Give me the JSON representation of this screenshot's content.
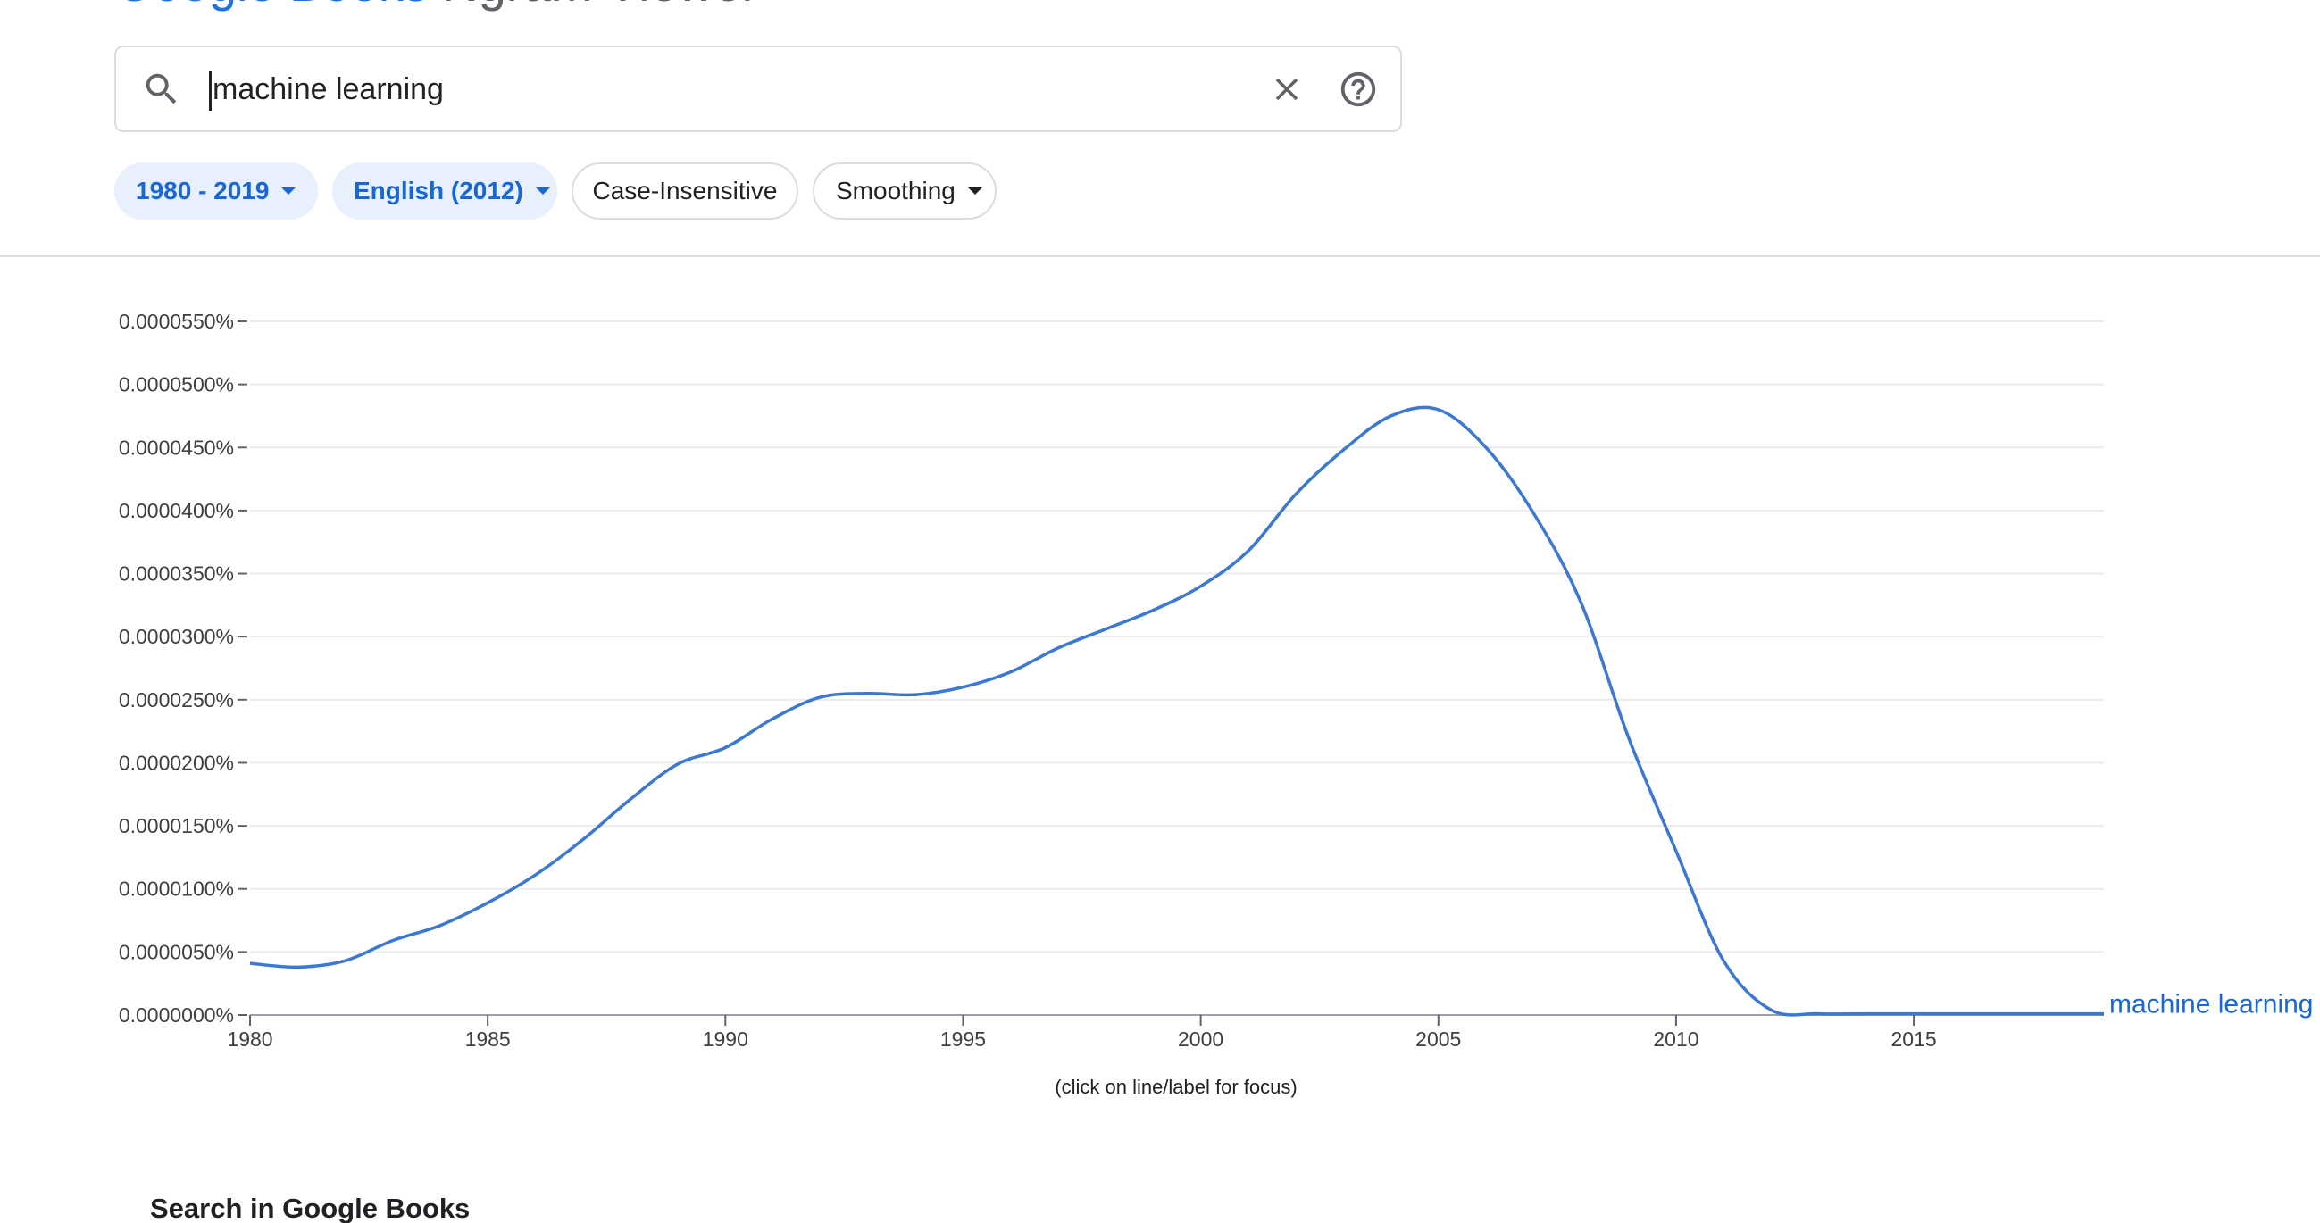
{
  "header": {
    "title_parts": [
      "Google Books ",
      "Ngram Viewer"
    ]
  },
  "search": {
    "value": "machine learning",
    "placeholder": "",
    "icons": [
      "search-icon",
      "clear-icon",
      "help-icon"
    ]
  },
  "filters": {
    "year_range": "1980 - 2019",
    "corpus": "English (2012)",
    "case": "Case-Insensitive",
    "smoothing": "Smoothing"
  },
  "chart_data": {
    "type": "line",
    "title": "",
    "xlabel": "",
    "ylabel": "",
    "xlim": [
      1980,
      2019
    ],
    "ylim": [
      0,
      5.5e-05
    ],
    "x_ticks": [
      1980,
      1985,
      1990,
      1995,
      2000,
      2005,
      2010,
      2015
    ],
    "y_ticks": [
      "0.0000000%",
      "0.0000050%",
      "0.0000100%",
      "0.0000150%",
      "0.0000200%",
      "0.0000250%",
      "0.0000300%",
      "0.0000350%",
      "0.0000400%",
      "0.0000450%",
      "0.0000500%",
      "0.0000550%"
    ],
    "y_tick_values": [
      0,
      5e-06,
      1e-05,
      1.5e-05,
      2e-05,
      2.5e-05,
      3e-05,
      3.5e-05,
      4e-05,
      4.5e-05,
      5e-05,
      5.5e-05
    ],
    "grid": true,
    "legend": "end-of-line label",
    "series": [
      {
        "name": "machine learning",
        "color": "#3b78d4",
        "x": [
          1980,
          1981,
          1982,
          1983,
          1984,
          1985,
          1986,
          1987,
          1988,
          1989,
          1990,
          1991,
          1992,
          1993,
          1994,
          1995,
          1996,
          1997,
          1998,
          1999,
          2000,
          2001,
          2002,
          2003,
          2004,
          2005,
          2006,
          2007,
          2008,
          2009,
          2010,
          2011,
          2012,
          2013,
          2014,
          2015,
          2016,
          2017,
          2018,
          2019
        ],
        "values": [
          4.1e-06,
          3.8e-06,
          4.3e-06,
          5.9e-06,
          7.1e-06,
          8.9e-06,
          1.11e-05,
          1.39e-05,
          1.71e-05,
          1.99e-05,
          2.12e-05,
          2.35e-05,
          2.52e-05,
          2.55e-05,
          2.54e-05,
          2.6e-05,
          2.72e-05,
          2.91e-05,
          3.06e-05,
          3.21e-05,
          3.4e-05,
          3.68e-05,
          4.13e-05,
          4.48e-05,
          4.75e-05,
          4.8e-05,
          4.5e-05,
          3.98e-05,
          3.27e-05,
          2.2e-05,
          1.3e-05,
          4.3e-06,
          4e-07,
          1e-07,
          1e-07,
          1e-07,
          1e-07,
          1e-07,
          1e-07,
          1e-07
        ]
      }
    ]
  },
  "focus_hint": "(click on line/label for focus)",
  "books": {
    "heading": "Search in Google Books"
  }
}
